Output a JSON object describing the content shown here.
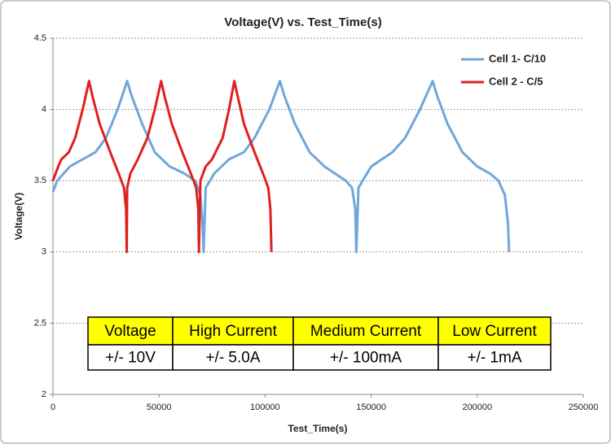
{
  "chart_data": {
    "type": "line",
    "title": "Voltage(V) vs. Test_Time(s)",
    "x_label": "Test_Time(s)",
    "y_label": "Voltage(V)",
    "xlim": [
      0,
      250000
    ],
    "xticks": [
      0,
      50000,
      100000,
      150000,
      200000,
      250000
    ],
    "ylim": [
      2,
      4.5
    ],
    "yticks": [
      2,
      2.5,
      3,
      3.5,
      4,
      4.5
    ],
    "grid": true,
    "legend": "upper right",
    "series": [
      {
        "name": "Cell 1- C/10",
        "color": "#6fa7d9",
        "x": [
          0,
          2000,
          8000,
          20000,
          25000,
          30500,
          35000,
          37000,
          42000,
          48000,
          55000,
          62000,
          67000,
          69500,
          70500,
          71000,
          72000,
          76000,
          83000,
          90000,
          95000,
          102000,
          107000,
          109000,
          114000,
          121000,
          128000,
          138000,
          141000,
          142500,
          143000,
          144000,
          150000,
          160000,
          166000,
          173000,
          179000,
          181000,
          186000,
          193000,
          200000,
          206000,
          210000,
          213000,
          214500,
          215000
        ],
        "values": [
          3.42,
          3.5,
          3.6,
          3.7,
          3.8,
          4.0,
          4.2,
          4.1,
          3.9,
          3.7,
          3.6,
          3.55,
          3.5,
          3.4,
          3.2,
          3.0,
          3.45,
          3.55,
          3.65,
          3.7,
          3.8,
          4.0,
          4.2,
          4.1,
          3.9,
          3.7,
          3.6,
          3.5,
          3.45,
          3.3,
          3.0,
          3.45,
          3.6,
          3.7,
          3.8,
          4.0,
          4.2,
          4.1,
          3.9,
          3.7,
          3.6,
          3.55,
          3.5,
          3.4,
          3.2,
          3.0
        ]
      },
      {
        "name": "Cell 2 - C/5",
        "color": "#e0201e",
        "x": [
          0,
          2500,
          4000,
          7500,
          10500,
          14000,
          17000,
          18500,
          22000,
          27000,
          31000,
          33500,
          34500,
          34800,
          35000,
          36500,
          40000,
          44500,
          48000,
          51000,
          52500,
          56000,
          61000,
          65000,
          67500,
          68500,
          68800,
          69500,
          72000,
          75000,
          80000,
          83000,
          85500,
          87000,
          90000,
          95000,
          99000,
          101500,
          102500,
          103000
        ],
        "values": [
          3.5,
          3.6,
          3.65,
          3.7,
          3.8,
          4.0,
          4.2,
          4.1,
          3.9,
          3.7,
          3.55,
          3.45,
          3.3,
          3.0,
          3.45,
          3.55,
          3.65,
          3.8,
          4.0,
          4.2,
          4.1,
          3.9,
          3.7,
          3.55,
          3.45,
          3.3,
          3.0,
          3.5,
          3.6,
          3.65,
          3.8,
          4.0,
          4.2,
          4.1,
          3.9,
          3.7,
          3.55,
          3.45,
          3.3,
          3.0
        ]
      }
    ]
  },
  "table": {
    "header": [
      "Voltage",
      "High Current",
      "Medium Current",
      "Low Current"
    ],
    "rows": [
      [
        "+/- 10V",
        "+/- 5.0A",
        "+/- 100mA",
        "+/- 1mA"
      ]
    ]
  }
}
